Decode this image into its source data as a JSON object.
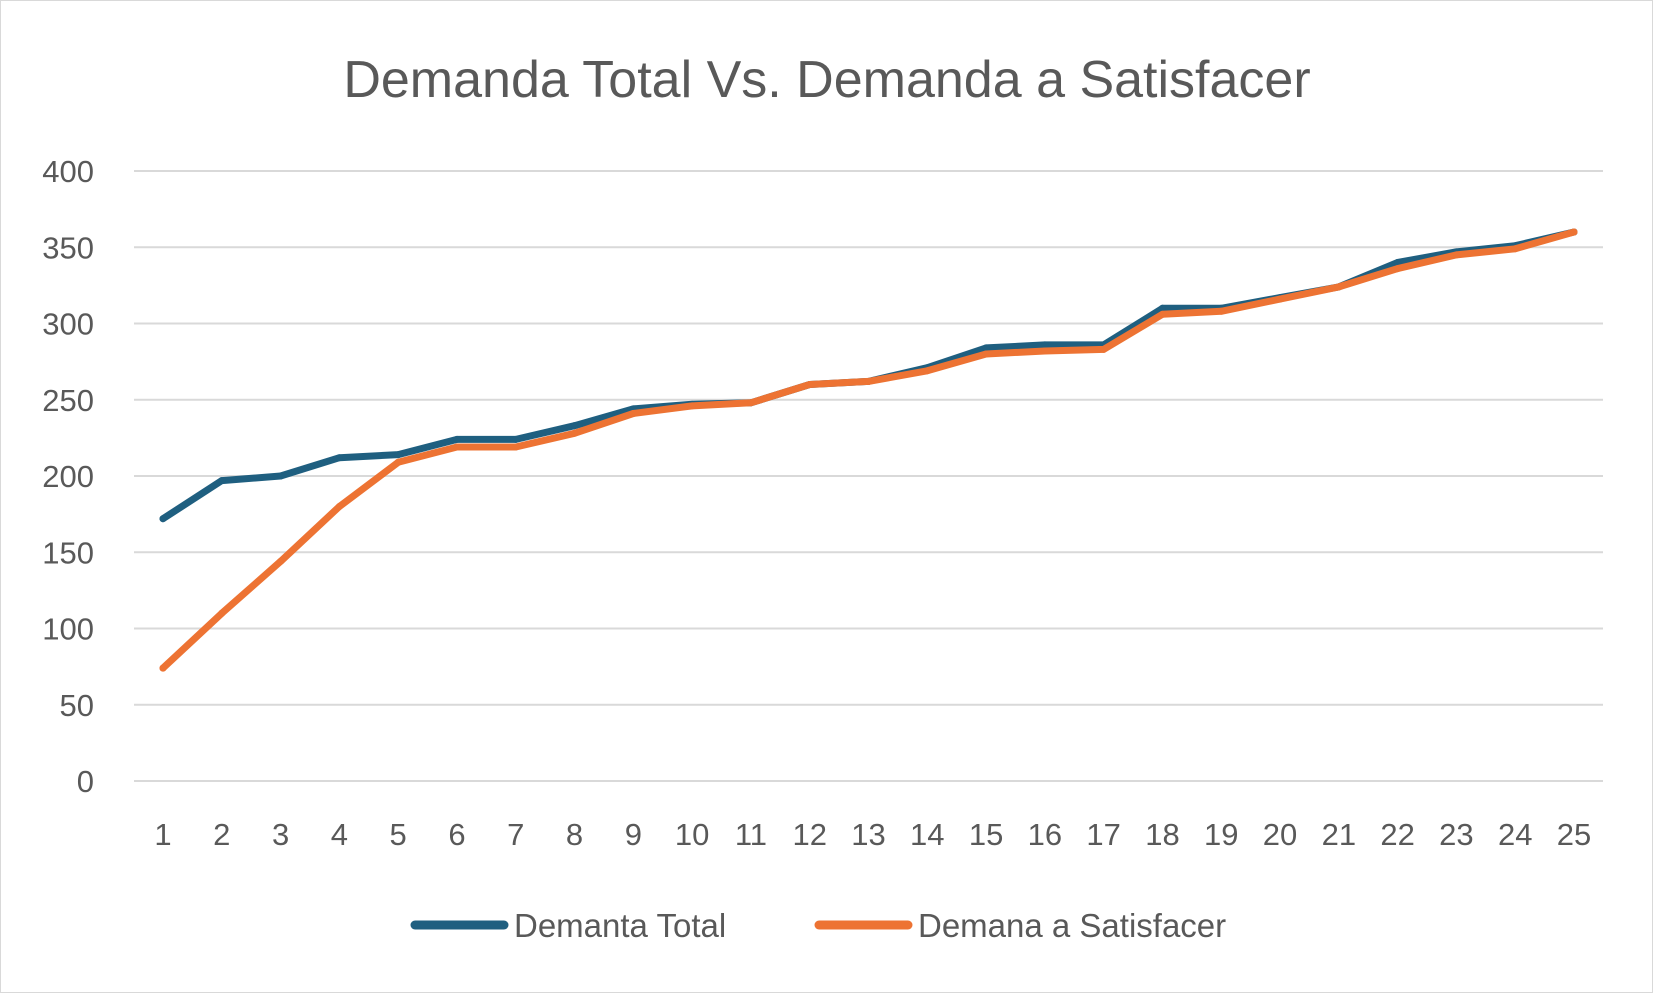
{
  "chart_data": {
    "type": "line",
    "title": "Demanda  Total Vs. Demanda a Satisfacer",
    "xlabel": "",
    "ylabel": "",
    "ylim": [
      0,
      400
    ],
    "yticks": [
      0,
      50,
      100,
      150,
      200,
      250,
      300,
      350,
      400
    ],
    "grid": "horizontal",
    "legend_position": "bottom",
    "categories": [
      "1",
      "2",
      "3",
      "4",
      "5",
      "6",
      "7",
      "8",
      "9",
      "10",
      "11",
      "12",
      "13",
      "14",
      "15",
      "16",
      "17",
      "18",
      "19",
      "20",
      "21",
      "22",
      "23",
      "24",
      "25"
    ],
    "series": [
      {
        "name": "Demanta Total",
        "color": "#1f5f80",
        "values": [
          172,
          197,
          200,
          212,
          214,
          224,
          224,
          233,
          244,
          247,
          248,
          260,
          262,
          271,
          284,
          286,
          286,
          310,
          310,
          317,
          324,
          340,
          347,
          351,
          360
        ]
      },
      {
        "name": "Demana a Satisfacer",
        "color": "#ed7333",
        "values": [
          74,
          110,
          144,
          180,
          209,
          219,
          219,
          228,
          241,
          246,
          248,
          260,
          262,
          269,
          280,
          282,
          283,
          306,
          308,
          316,
          324,
          336,
          345,
          349,
          360
        ]
      }
    ]
  }
}
